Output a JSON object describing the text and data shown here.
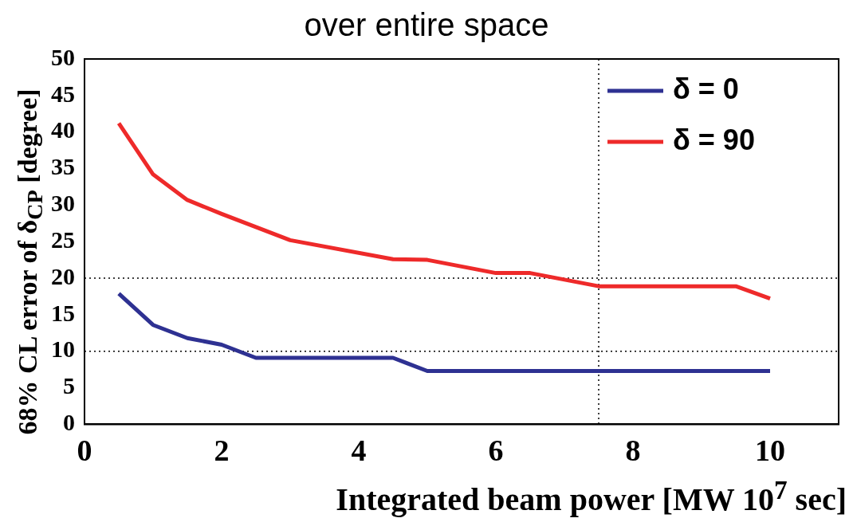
{
  "chart_data": {
    "type": "line",
    "title": "over entire space",
    "xlabel": "Integrated beam power [MW 10$^{7}$ sec]",
    "ylabel": "68% CL error of δ$_{CP}$ [degree]",
    "series": [
      {
        "name": "δ = 0",
        "color": "#2e3192",
        "x": [
          0.5,
          1,
          1.5,
          2,
          2.5,
          4.5,
          5,
          10
        ],
        "values": [
          17.9,
          13.6,
          11.8,
          10.9,
          9.1,
          9.1,
          7.3,
          7.3
        ]
      },
      {
        "name": "δ = 90",
        "color": "#ee2a2a",
        "x": [
          0.5,
          1,
          1.5,
          2,
          2.5,
          3,
          4.5,
          5,
          6,
          6.5,
          7.5,
          9.5,
          10
        ],
        "values": [
          41.2,
          34.2,
          30.7,
          28.8,
          27.0,
          25.2,
          22.6,
          22.5,
          20.7,
          20.7,
          18.9,
          18.9,
          17.2
        ]
      }
    ],
    "xlim": [
      0,
      11
    ],
    "xticks": [
      0,
      2,
      4,
      6,
      8,
      10
    ],
    "ylim": [
      0,
      50
    ],
    "yticks": [
      0,
      5,
      10,
      15,
      20,
      25,
      30,
      35,
      40,
      45,
      50
    ],
    "ref_lines": [
      {
        "axis": "y",
        "value": 10,
        "line_style": "dotted"
      },
      {
        "axis": "y",
        "value": 20,
        "line_style": "dotted"
      },
      {
        "axis": "x",
        "value": 7.5,
        "line_style": "dotted"
      }
    ],
    "legend": "top right",
    "grid": false,
    "marker": "none",
    "line_style": "solid"
  }
}
